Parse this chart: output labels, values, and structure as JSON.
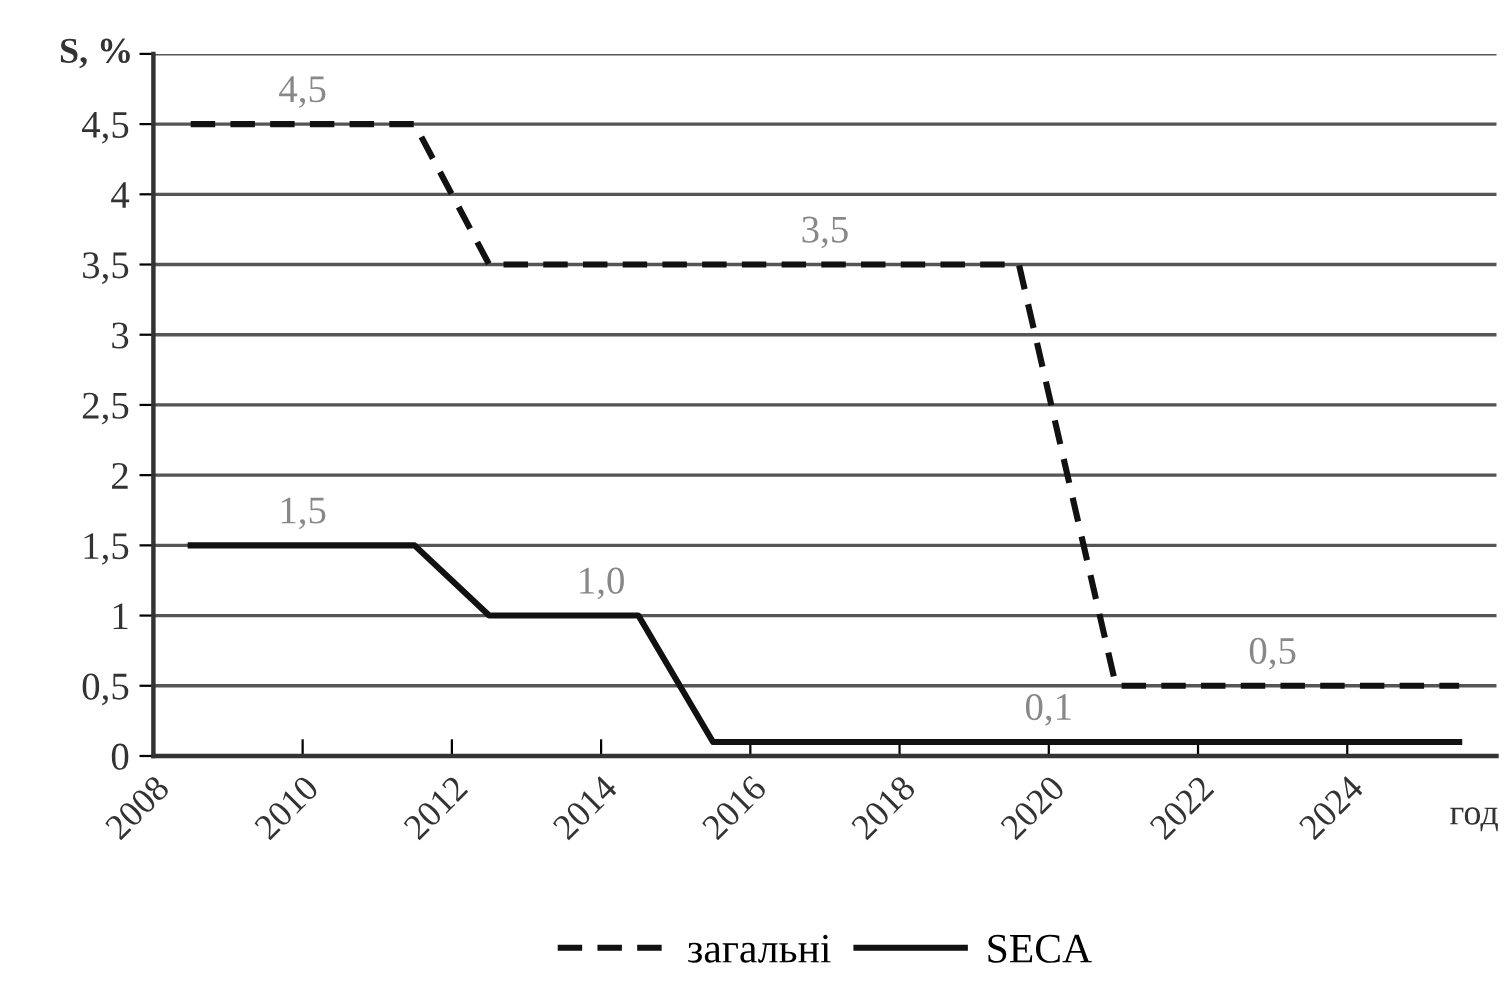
{
  "chart_data": {
    "type": "line",
    "ylabel": "S, %",
    "xlabel": "год",
    "series": [
      {
        "name": "загальні",
        "color": "#111111",
        "line_style": "dashed",
        "x": [
          2008.5,
          2011.5,
          2012.5,
          2019.6,
          2020.9,
          2025.5
        ],
        "values": [
          4.5,
          4.5,
          3.5,
          3.5,
          0.5,
          0.5
        ]
      },
      {
        "name": "SECA",
        "color": "#111111",
        "line_style": "solid",
        "x": [
          2008.5,
          2011.5,
          2012.5,
          2014.5,
          2015.5,
          2025.5
        ],
        "values": [
          1.5,
          1.5,
          1.0,
          1.0,
          0.1,
          0.1
        ]
      }
    ],
    "xlim": [
      2008,
      2026
    ],
    "xticks": [
      2008,
      2010,
      2012,
      2014,
      2016,
      2018,
      2020,
      2022,
      2024
    ],
    "ylim": [
      0,
      5
    ],
    "yticks": [
      {
        "value": 0,
        "label": "0"
      },
      {
        "value": 0.5,
        "label": "0,5"
      },
      {
        "value": 1,
        "label": "1"
      },
      {
        "value": 1.5,
        "label": "1,5"
      },
      {
        "value": 2,
        "label": "2"
      },
      {
        "value": 2.5,
        "label": "2,5"
      },
      {
        "value": 3,
        "label": "3"
      },
      {
        "value": 3.5,
        "label": "3,5"
      },
      {
        "value": 4,
        "label": "4"
      },
      {
        "value": 4.5,
        "label": "4,5"
      },
      {
        "value": 5,
        "label": null
      }
    ],
    "annotations": [
      {
        "text": "4,5",
        "x": 2010,
        "y": 4.5
      },
      {
        "text": "3,5",
        "x": 2017,
        "y": 3.5
      },
      {
        "text": "1,5",
        "x": 2010,
        "y": 1.5
      },
      {
        "text": "1,0",
        "x": 2014,
        "y": 1.0
      },
      {
        "text": "0,5",
        "x": 2023,
        "y": 0.5
      },
      {
        "text": "0,1",
        "x": 2020,
        "y": 0.1
      }
    ],
    "grid": "y",
    "legend": "bottom",
    "marker": "none"
  }
}
